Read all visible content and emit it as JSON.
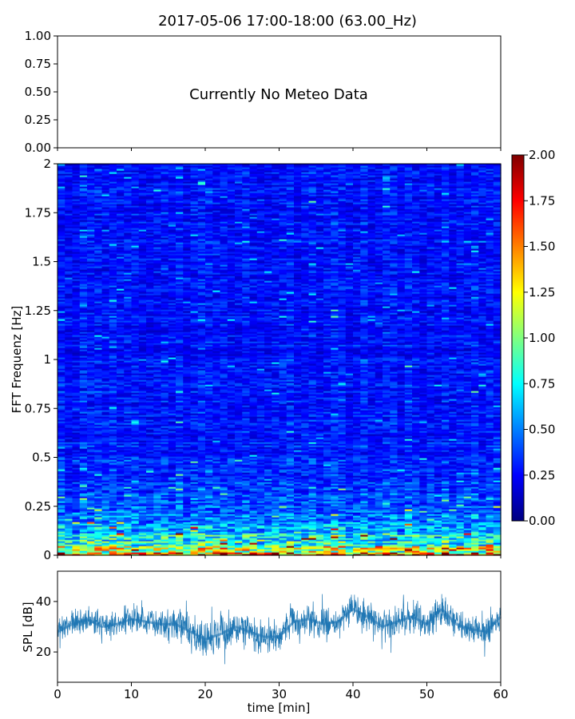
{
  "title": "2017-05-06 17:00-18:00 (63.00_Hz)",
  "chart_data": [
    {
      "type": "line",
      "panel": "meteo",
      "annotation": "Currently No Meteo Data",
      "ylim": [
        0,
        1
      ],
      "yticks": [
        "0.00",
        "0.25",
        "0.50",
        "0.75",
        "1.00"
      ],
      "xlim": [
        0,
        60
      ],
      "series": []
    },
    {
      "type": "heatmap",
      "panel": "spectrogram",
      "ylabel": "FFT Frequenz [Hz]",
      "xlim": [
        0,
        60
      ],
      "ylim": [
        0,
        2
      ],
      "yticks": [
        "0",
        "0.25",
        "0.5",
        "0.75",
        "1",
        "1.25",
        "1.5",
        "1.75",
        "2"
      ],
      "colormap": "jet",
      "colorbar": {
        "vmin": 0,
        "vmax": 2,
        "ticks": [
          "0.00",
          "0.25",
          "0.50",
          "0.75",
          "1.00",
          "1.25",
          "1.50",
          "1.75",
          "2.00"
        ]
      },
      "frequency_profile": [
        {
          "f": 0.0,
          "level": 1.75
        },
        {
          "f": 0.02,
          "level": 1.3
        },
        {
          "f": 0.05,
          "level": 0.95
        },
        {
          "f": 0.1,
          "level": 0.7
        },
        {
          "f": 0.15,
          "level": 0.55
        },
        {
          "f": 0.25,
          "level": 0.4
        },
        {
          "f": 0.5,
          "level": 0.3
        },
        {
          "f": 1.0,
          "level": 0.27
        },
        {
          "f": 2.0,
          "level": 0.27
        }
      ]
    },
    {
      "type": "line",
      "panel": "spl",
      "xlabel": "time [min]",
      "ylabel": "SPL [dB]",
      "xlim": [
        0,
        60
      ],
      "ylim": [
        8,
        52
      ],
      "xticks": [
        "0",
        "10",
        "20",
        "30",
        "40",
        "50",
        "60"
      ],
      "yticks": [
        "20",
        "40"
      ],
      "color": "#1f77b4",
      "series": [
        {
          "x": [
            0,
            2,
            4,
            6,
            8,
            10,
            12,
            14,
            16,
            18,
            20,
            22,
            24,
            26,
            28,
            30,
            32,
            34,
            36,
            38,
            40,
            42,
            44,
            46,
            48,
            50,
            52,
            54,
            56,
            58,
            60
          ],
          "y": [
            28,
            31,
            33,
            30,
            31,
            33,
            32,
            31,
            31,
            28,
            25,
            27,
            30,
            28,
            26,
            26,
            32,
            33,
            31,
            32,
            37,
            34,
            30,
            32,
            34,
            31,
            37,
            31,
            29,
            28,
            34
          ],
          "spread": [
            7,
            6,
            6,
            6,
            5,
            6,
            6,
            6,
            7,
            7,
            7,
            8,
            8,
            7,
            7,
            7,
            8,
            7,
            7,
            7,
            8,
            7,
            7,
            7,
            7,
            7,
            8,
            7,
            7,
            7,
            7
          ]
        }
      ]
    }
  ]
}
